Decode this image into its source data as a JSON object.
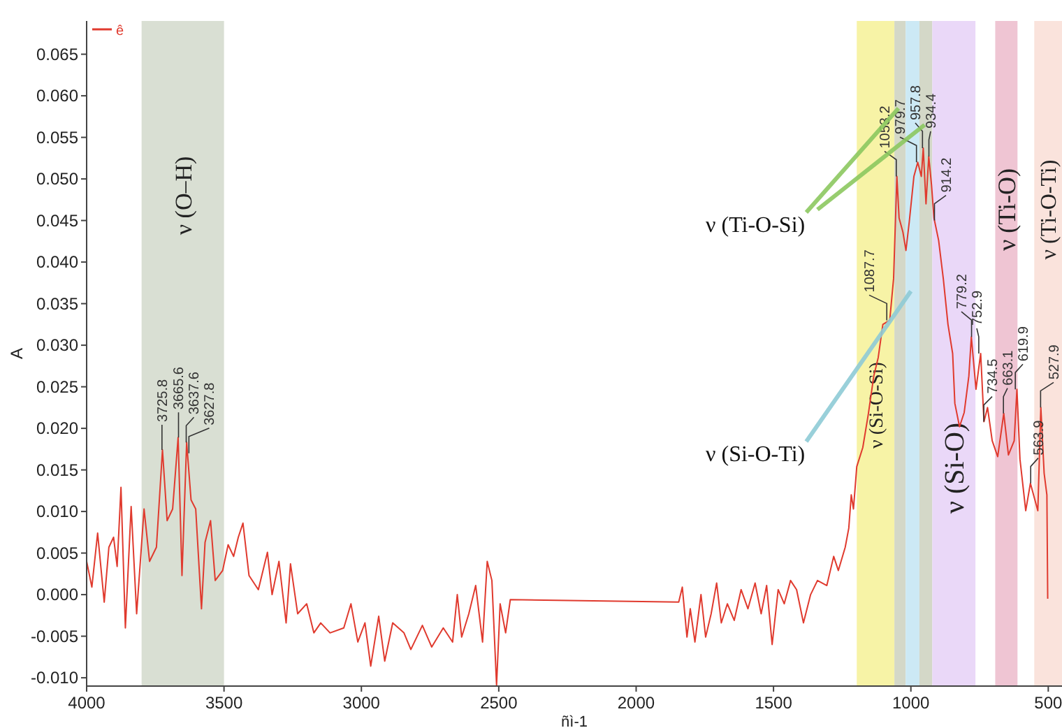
{
  "chart_data": {
    "type": "line",
    "xlabel": "ñì-1",
    "ylabel": "A",
    "xlim": [
      4000,
      450
    ],
    "ylim": [
      -0.011,
      0.069
    ],
    "xticks": [
      4000,
      3500,
      3000,
      2500,
      2000,
      1500,
      1000,
      500
    ],
    "yticks": [
      {
        "value": -0.01,
        "label": "-0.010"
      },
      {
        "value": -0.005,
        "label": "-0.005"
      },
      {
        "value": 0,
        "label": "0.000"
      },
      {
        "value": 0.005,
        "label": "0.005"
      },
      {
        "value": 0.01,
        "label": "0.010"
      },
      {
        "value": 0.015,
        "label": "0.015"
      },
      {
        "value": 0.02,
        "label": "0.020"
      },
      {
        "value": 0.025,
        "label": "0.025"
      },
      {
        "value": 0.03,
        "label": "0.030"
      },
      {
        "value": 0.035,
        "label": "0.035"
      },
      {
        "value": 0.04,
        "label": "0.040"
      },
      {
        "value": 0.045,
        "label": "0.045"
      },
      {
        "value": 0.05,
        "label": "0.050"
      },
      {
        "value": 0.055,
        "label": "0.055"
      },
      {
        "value": 0.06,
        "label": "0.060"
      },
      {
        "value": 0.065,
        "label": "0.065"
      }
    ],
    "grid": false,
    "legend": "top left",
    "line_style": "solid",
    "series": [
      {
        "name": "ê",
        "color": "#e03a2e",
        "x": [
          4000,
          3981,
          3960,
          3936,
          3919,
          3902,
          3889,
          3875,
          3859,
          3838,
          3818,
          3791,
          3771,
          3746,
          3724,
          3707,
          3687,
          3667,
          3653,
          3636,
          3620,
          3603,
          3582,
          3569,
          3549,
          3532,
          3505,
          3485,
          3465,
          3448,
          3431,
          3409,
          3375,
          3342,
          3325,
          3300,
          3274,
          3258,
          3232,
          3199,
          3173,
          3148,
          3114,
          3064,
          3038,
          3013,
          2987,
          2966,
          2937,
          2915,
          2886,
          2845,
          2820,
          2778,
          2744,
          2702,
          2668,
          2651,
          2635,
          2609,
          2584,
          2559,
          2542,
          2525,
          2508,
          2495,
          2475,
          2458,
          1845,
          1832,
          1815,
          1803,
          1786,
          1764,
          1747,
          1727,
          1707,
          1690,
          1668,
          1643,
          1618,
          1593,
          1567,
          1545,
          1525,
          1505,
          1483,
          1461,
          1438,
          1416,
          1391,
          1365,
          1340,
          1306,
          1281,
          1264,
          1239,
          1226,
          1217,
          1209,
          1197,
          1175,
          1155,
          1135,
          1119,
          1102,
          1077,
          1063,
          1051,
          1043,
          1029,
          1018,
          1006,
          989,
          975,
          962,
          955,
          945,
          935,
          925,
          916,
          899,
          882,
          865,
          848,
          840,
          823,
          806,
          789,
          780,
          763,
          746,
          734,
          721,
          704,
          684,
          662,
          645,
          624,
          614,
          603,
          582,
          565,
          538,
          527,
          515,
          505,
          502
        ],
        "values": [
          0.004,
          0.0009,
          0.0074,
          -0.0009,
          0.0057,
          0.0069,
          0.0034,
          0.0129,
          -0.004,
          0.0106,
          -0.0023,
          0.0103,
          0.004,
          0.0057,
          0.0174,
          0.0089,
          0.0103,
          0.0189,
          0.0023,
          0.0183,
          0.0114,
          0.0103,
          -0.0017,
          0.0063,
          0.0089,
          0.0017,
          0.0029,
          0.006,
          0.0046,
          0.0069,
          0.0086,
          0.0023,
          0.0006,
          0.0051,
          0,
          0.004,
          -0.0034,
          0.0037,
          -0.0023,
          -0.0011,
          -0.0046,
          -0.0034,
          -0.0046,
          -0.004,
          -0.0011,
          -0.0057,
          -0.0034,
          -0.0086,
          -0.0026,
          -0.008,
          -0.0034,
          -0.0046,
          -0.0066,
          -0.0037,
          -0.0063,
          -0.004,
          -0.0057,
          0,
          -0.0051,
          -0.0023,
          0.0011,
          -0.0057,
          0.004,
          0.0017,
          -0.0109,
          -0.0011,
          -0.0046,
          -0.0006,
          -0.0009,
          0.0009,
          -0.0051,
          -0.0017,
          -0.0057,
          0,
          -0.0051,
          -0.0023,
          0.0014,
          -0.0034,
          -0.0011,
          -0.0031,
          0.0006,
          -0.0017,
          0.0014,
          -0.0023,
          0.0011,
          -0.006,
          0.0006,
          -0.0011,
          0.0017,
          0.0006,
          -0.0034,
          0,
          0.0017,
          0.0011,
          0.0046,
          0.0029,
          0.0057,
          0.008,
          0.012,
          0.0103,
          0.0154,
          0.0177,
          0.0217,
          0.0263,
          0.0285,
          0.0325,
          0.033,
          0.038,
          0.0503,
          0.0453,
          0.0436,
          0.0414,
          0.0448,
          0.0503,
          0.052,
          0.0503,
          0.0537,
          0.047,
          0.0527,
          0.0493,
          0.0453,
          0.0426,
          0.038,
          0.0325,
          0.029,
          0.023,
          0.0202,
          0.0219,
          0.0263,
          0.031,
          0.0247,
          0.029,
          0.0208,
          0.0225,
          0.0185,
          0.0166,
          0.0218,
          0.0168,
          0.0185,
          0.0247,
          0.0163,
          0.0101,
          0.0134,
          0.0101,
          0.0225,
          0.0146,
          0.012,
          -0.0005
        ]
      }
    ],
    "bands": [
      {
        "axis": "x",
        "from": 3800,
        "to": 3500,
        "label": "ν (O–H)",
        "color": "#d9dfd3"
      },
      {
        "axis": "x",
        "from": 1197,
        "to": 1060,
        "label": "ν (Si-O-Si)",
        "color": "#f7f3a6"
      },
      {
        "axis": "x",
        "from": 1060,
        "to": 1019,
        "color": "#d4d8c8"
      },
      {
        "axis": "x",
        "from": 1019,
        "to": 969,
        "color": "#cce9f5"
      },
      {
        "axis": "x",
        "from": 969,
        "to": 922,
        "color": "#d4d8c8"
      },
      {
        "axis": "x",
        "from": 922,
        "to": 765,
        "label": "ν (Si-O)",
        "color": "#ead8f8"
      },
      {
        "axis": "x",
        "from": 693,
        "to": 612,
        "label": "ν (Ti-O)",
        "color": "#efc5d3"
      },
      {
        "axis": "x",
        "from": 551,
        "to": 450,
        "label": "ν (Ti-O-Ti)",
        "color": "#fae3dc"
      }
    ],
    "annotations": [
      {
        "text": "3725.8",
        "x": 3725.8,
        "y": 0.0174
      },
      {
        "text": "3665.6",
        "x": 3665.6,
        "y": 0.0189
      },
      {
        "text": "3637.6",
        "x": 3637.6,
        "y": 0.0183
      },
      {
        "text": "3627.8",
        "x": 3627.8,
        "y": 0.017
      },
      {
        "text": "1087.7",
        "x": 1087.7,
        "y": 0.033
      },
      {
        "text": "1053.2",
        "x": 1053.2,
        "y": 0.0503
      },
      {
        "text": "979.7",
        "x": 979.7,
        "y": 0.052
      },
      {
        "text": "957.8",
        "x": 957.8,
        "y": 0.0537
      },
      {
        "text": "934.4",
        "x": 934.4,
        "y": 0.0527
      },
      {
        "text": "914.2",
        "x": 914.2,
        "y": 0.045
      },
      {
        "text": "779.2",
        "x": 779.2,
        "y": 0.031
      },
      {
        "text": "752.9",
        "x": 752.9,
        "y": 0.029
      },
      {
        "text": "734.5",
        "x": 734.5,
        "y": 0.0208
      },
      {
        "text": "663.1",
        "x": 663.1,
        "y": 0.0218
      },
      {
        "text": "619.9",
        "x": 619.9,
        "y": 0.0247
      },
      {
        "text": "563.9",
        "x": 563.9,
        "y": 0.0134
      },
      {
        "text": "527.9",
        "x": 527.9,
        "y": 0.0225
      },
      {
        "text": "ν (Ti-O-Si)",
        "x": 1045,
        "y": 0.0585
      },
      {
        "text": "ν (Si-O-Ti)",
        "x": 1000,
        "y": 0.0365
      }
    ]
  }
}
